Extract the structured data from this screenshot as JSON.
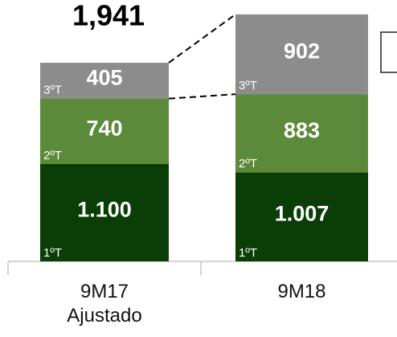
{
  "chart_data": {
    "type": "stacked_bar",
    "annotation": "1,941",
    "categories": [
      "9M17 Ajustado",
      "9M18"
    ],
    "series": [
      {
        "name": "1ºT",
        "color": "#0b3d06",
        "values": [
          1100,
          1007
        ],
        "value_labels": [
          "1.100",
          "1.007"
        ]
      },
      {
        "name": "2ºT",
        "color": "#5b8a3a",
        "values": [
          740,
          883
        ]
      },
      {
        "name": "3ºT",
        "color": "#8c8c8c",
        "values": [
          405,
          902
        ]
      }
    ]
  }
}
